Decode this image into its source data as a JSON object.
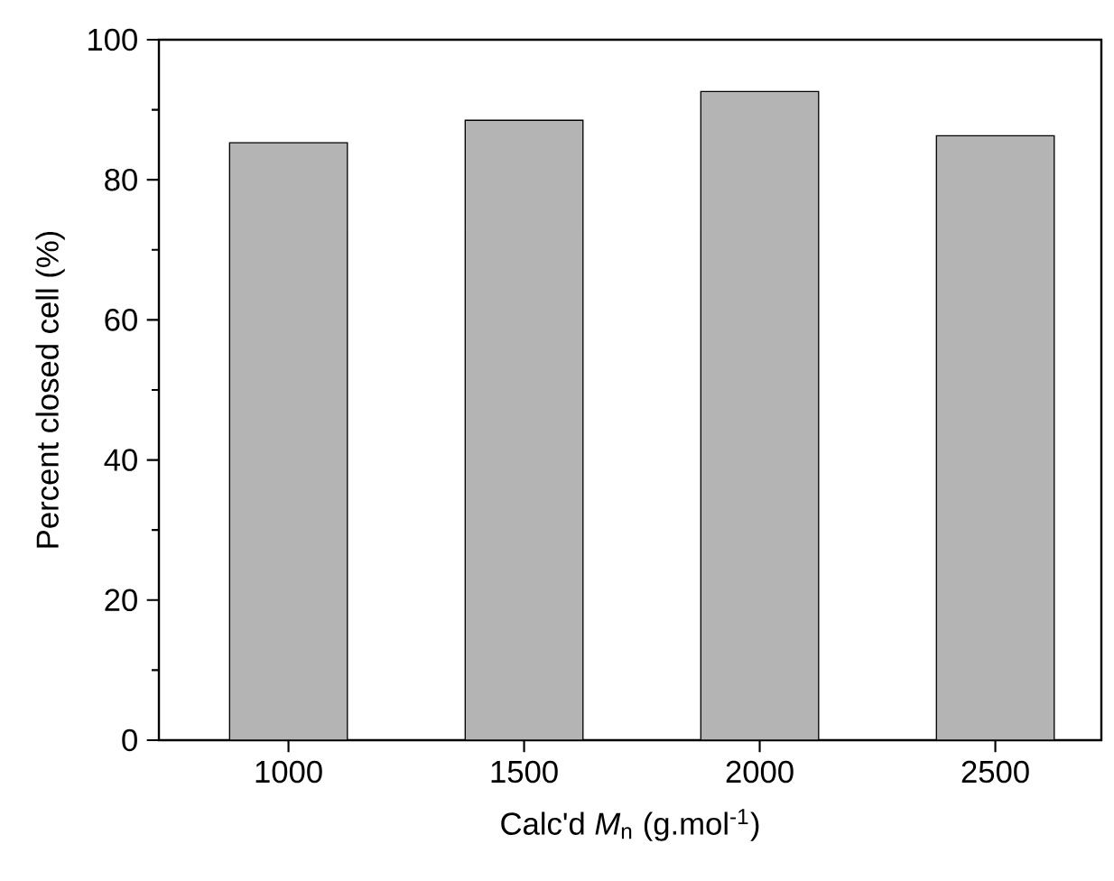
{
  "chart_data": {
    "type": "bar",
    "xlabel": "Calc'd *M*$_{n}$ (g.mol$^{-1}$)",
    "ylabel": "Percent closed cell (%)",
    "categories": [
      "1000",
      "1500",
      "2000",
      "2500"
    ],
    "values": [
      85.3,
      88.5,
      92.6,
      86.3
    ],
    "color": "#b4b4b4",
    "ylim": [
      0,
      100
    ],
    "yticks": [
      0,
      20,
      40,
      60,
      80,
      100
    ],
    "grid": false
  }
}
